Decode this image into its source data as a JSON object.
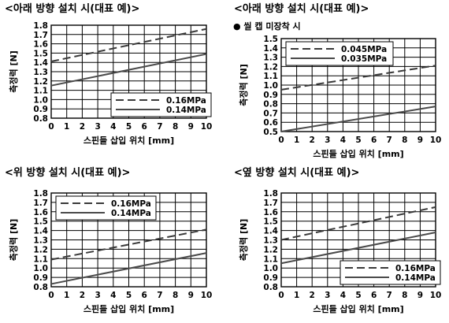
{
  "chart_data": [
    {
      "type": "line",
      "title": "<아래 방향 설치 시(대표 예)>",
      "subtitle": "",
      "xlabel": "스핀들 삽입 위치 [mm]",
      "ylabel": "측정력 [N]",
      "xlim": [
        0,
        10
      ],
      "ylim": [
        0.8,
        1.8
      ],
      "x_ticks": [
        "0",
        "1",
        "2",
        "3",
        "4",
        "5",
        "6",
        "7",
        "8",
        "9",
        "10"
      ],
      "y_ticks": [
        "0.8",
        "0.9",
        "1.0",
        "1.1",
        "1.2",
        "1.3",
        "1.4",
        "1.5",
        "1.6",
        "1.7",
        "1.8"
      ],
      "grid": true,
      "legend_position": "bottom-right",
      "series": [
        {
          "name": "0.16MPa",
          "dash": true,
          "x": [
            0,
            10
          ],
          "y": [
            1.41,
            1.76
          ]
        },
        {
          "name": "0.14MPa",
          "dash": false,
          "x": [
            0,
            10
          ],
          "y": [
            1.15,
            1.49
          ]
        }
      ]
    },
    {
      "type": "line",
      "title": "<아래 방향 설치 시(대표 예)>",
      "subtitle": "● 씰 캡 미장착 시",
      "xlabel": "스핀들 삽입 위치 [mm]",
      "ylabel": "측정력 [N]",
      "xlim": [
        0,
        10
      ],
      "ylim": [
        0.5,
        1.5
      ],
      "x_ticks": [
        "0",
        "1",
        "2",
        "3",
        "4",
        "5",
        "6",
        "7",
        "8",
        "9",
        "10"
      ],
      "y_ticks": [
        "0.5",
        "0.6",
        "0.7",
        "0.8",
        "0.9",
        "1.0",
        "1.1",
        "1.2",
        "1.3",
        "1.4",
        "1.5"
      ],
      "grid": true,
      "legend_position": "top-left",
      "series": [
        {
          "name": "0.045MPa",
          "dash": true,
          "x": [
            0,
            10
          ],
          "y": [
            0.95,
            1.21
          ]
        },
        {
          "name": "0.035MPa",
          "dash": false,
          "x": [
            0,
            10
          ],
          "y": [
            0.5,
            0.77
          ]
        }
      ]
    },
    {
      "type": "line",
      "title": "<위 방향 설치 시(대표 예)>",
      "subtitle": "",
      "xlabel": "스핀들 삽입 위치 [mm]",
      "ylabel": "측정력 [N]",
      "xlim": [
        0,
        10
      ],
      "ylim": [
        0.8,
        1.8
      ],
      "x_ticks": [
        "0",
        "1",
        "2",
        "3",
        "4",
        "5",
        "6",
        "7",
        "8",
        "9",
        "10"
      ],
      "y_ticks": [
        "0.8",
        "0.9",
        "1.0",
        "1.1",
        "1.2",
        "1.3",
        "1.4",
        "1.5",
        "1.6",
        "1.7",
        "1.8"
      ],
      "grid": true,
      "legend_position": "top-left",
      "series": [
        {
          "name": "0.16MPa",
          "dash": true,
          "x": [
            0,
            10
          ],
          "y": [
            1.09,
            1.41
          ]
        },
        {
          "name": "0.14MPa",
          "dash": false,
          "x": [
            0,
            10
          ],
          "y": [
            0.83,
            1.16
          ]
        }
      ]
    },
    {
      "type": "line",
      "title": "<옆 방향 설치 시(대표 예)>",
      "subtitle": "",
      "xlabel": "스핀들 삽입 위치 [mm]",
      "ylabel": "측정력 [N]",
      "xlim": [
        0,
        10
      ],
      "ylim": [
        0.8,
        1.8
      ],
      "x_ticks": [
        "0",
        "1",
        "2",
        "3",
        "4",
        "5",
        "6",
        "7",
        "8",
        "9",
        "10"
      ],
      "y_ticks": [
        "0.8",
        "0.9",
        "1.0",
        "1.1",
        "1.2",
        "1.3",
        "1.4",
        "1.5",
        "1.6",
        "1.7",
        "1.8"
      ],
      "grid": true,
      "legend_position": "bottom-right",
      "series": [
        {
          "name": "0.16MPa",
          "dash": true,
          "x": [
            0,
            10
          ],
          "y": [
            1.3,
            1.65
          ]
        },
        {
          "name": "0.14MPa",
          "dash": false,
          "x": [
            0,
            10
          ],
          "y": [
            1.05,
            1.38
          ]
        }
      ]
    }
  ]
}
